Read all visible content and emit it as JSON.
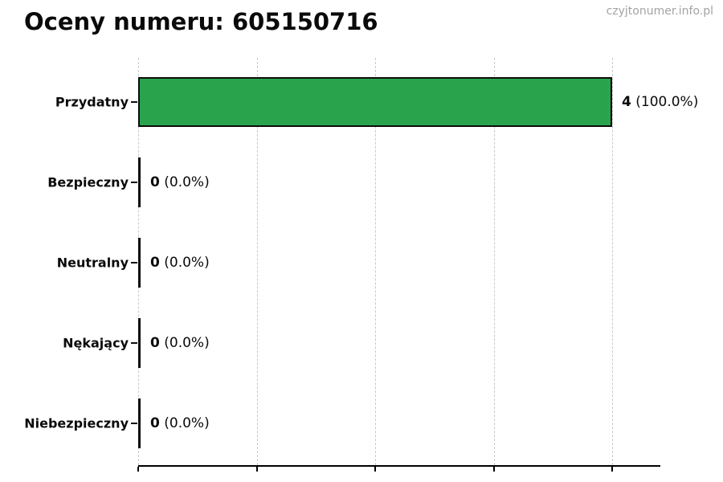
{
  "page": {
    "title": "Oceny numeru: 605150716",
    "watermark": "czyjtonumer.info.pl"
  },
  "chart_data": {
    "type": "bar",
    "orientation": "horizontal",
    "title": "Oceny numeru: 605150716",
    "categories": [
      "Przydatny",
      "Bezpieczny",
      "Neutralny",
      "Nękający",
      "Niebezpieczny"
    ],
    "values": [
      4,
      0,
      0,
      0,
      0
    ],
    "value_labels": [
      "4",
      "0",
      "0",
      "0",
      "0"
    ],
    "pct_labels": [
      "(100.0%)",
      "(0.0%)",
      "(0.0%)",
      "(0.0%)",
      "(0.0%)"
    ],
    "xlim": [
      0,
      4.4
    ],
    "x_ticks": [
      0,
      1,
      2,
      3,
      4
    ],
    "grid": "vertical-dashed",
    "legend": "none",
    "colors": {
      "bar_fill": "#29a44d",
      "bar_edge": "#0d0d0d",
      "gridline": "#c8c8c8",
      "axis": "#000000",
      "text": "#0a0a0a",
      "watermark": "#a3a3a3"
    }
  }
}
